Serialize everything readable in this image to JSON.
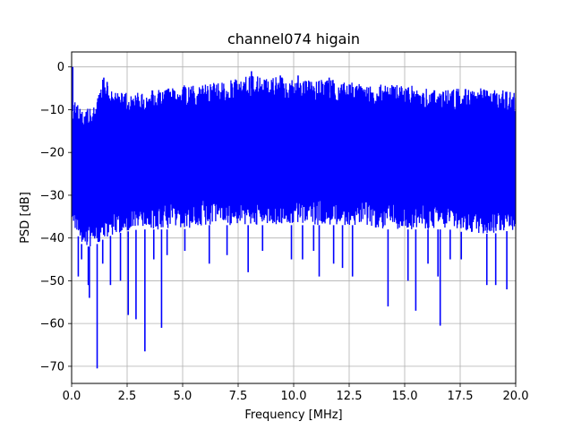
{
  "chart_data": {
    "type": "line",
    "title": "channel074 higain",
    "xlabel": "Frequency [MHz]",
    "ylabel": "PSD [dB]",
    "xlim": [
      0,
      20
    ],
    "ylim": [
      -74,
      3.5
    ],
    "xticks": [
      0,
      2.5,
      5,
      7.5,
      10,
      12.5,
      15,
      17.5,
      20
    ],
    "xtick_labels": [
      "0.0",
      "2.5",
      "5.0",
      "7.5",
      "10.0",
      "12.5",
      "15.0",
      "17.5",
      "20.0"
    ],
    "yticks": [
      0,
      -10,
      -20,
      -30,
      -40,
      -50,
      -60,
      -70
    ],
    "ytick_labels": [
      "0",
      "−10",
      "−20",
      "−30",
      "−40",
      "−50",
      "−60",
      "−70"
    ],
    "grid": true,
    "series": [
      {
        "color": "#0000ff",
        "upper_envelope": {
          "x": [
            0,
            0.5,
            1.0,
            1.4,
            2.0,
            3.0,
            4.0,
            5.0,
            6.0,
            7.0,
            8.0,
            9.0,
            10.0,
            11.0,
            12.0,
            13.0,
            14.0,
            15.0,
            16.0,
            17.0,
            18.0,
            19.0,
            20.0
          ],
          "y": [
            -7,
            -10,
            -9,
            -3,
            -6,
            -6,
            -5,
            -4,
            -4,
            -3,
            -2,
            -2,
            -3,
            -3,
            -3,
            -4,
            -4,
            -4,
            -5,
            -5,
            -5,
            -5,
            -6
          ]
        },
        "lower_envelope": {
          "x": [
            0,
            0.5,
            1.0,
            1.5,
            2.0,
            3.0,
            4.0,
            5.0,
            6.0,
            7.0,
            8.0,
            9.0,
            10.0,
            11.0,
            12.0,
            13.0,
            14.0,
            15.0,
            16.0,
            17.0,
            18.0,
            19.0,
            20.0
          ],
          "y": [
            -36,
            -42,
            -42,
            -40,
            -39,
            -38,
            -38,
            -38,
            -37,
            -37,
            -37,
            -37,
            -37,
            -37,
            -37,
            -37,
            -38,
            -38,
            -38,
            -38,
            -39,
            -39,
            -38
          ]
        },
        "dips": [
          {
            "x": 0.3,
            "y": -49
          },
          {
            "x": 0.45,
            "y": -45
          },
          {
            "x": 0.75,
            "y": -51
          },
          {
            "x": 0.8,
            "y": -54
          },
          {
            "x": 1.15,
            "y": -70.5
          },
          {
            "x": 1.4,
            "y": -46
          },
          {
            "x": 1.75,
            "y": -51
          },
          {
            "x": 2.2,
            "y": -50
          },
          {
            "x": 2.55,
            "y": -58
          },
          {
            "x": 2.9,
            "y": -59
          },
          {
            "x": 3.3,
            "y": -66.5
          },
          {
            "x": 3.7,
            "y": -45
          },
          {
            "x": 4.05,
            "y": -61
          },
          {
            "x": 4.3,
            "y": -44
          },
          {
            "x": 5.1,
            "y": -43
          },
          {
            "x": 6.2,
            "y": -46
          },
          {
            "x": 7.0,
            "y": -44
          },
          {
            "x": 7.95,
            "y": -48
          },
          {
            "x": 8.6,
            "y": -43
          },
          {
            "x": 9.9,
            "y": -45
          },
          {
            "x": 10.4,
            "y": -45
          },
          {
            "x": 10.9,
            "y": -43
          },
          {
            "x": 11.15,
            "y": -49
          },
          {
            "x": 11.8,
            "y": -46
          },
          {
            "x": 12.2,
            "y": -47
          },
          {
            "x": 12.65,
            "y": -49
          },
          {
            "x": 14.25,
            "y": -56
          },
          {
            "x": 15.15,
            "y": -50
          },
          {
            "x": 15.5,
            "y": -57
          },
          {
            "x": 16.05,
            "y": -46
          },
          {
            "x": 16.5,
            "y": -49
          },
          {
            "x": 16.6,
            "y": -60.5
          },
          {
            "x": 17.05,
            "y": -45
          },
          {
            "x": 17.55,
            "y": -45
          },
          {
            "x": 18.7,
            "y": -51
          },
          {
            "x": 19.1,
            "y": -51
          },
          {
            "x": 19.6,
            "y": -52
          }
        ],
        "peaks": [
          {
            "x": 0.05,
            "y": 0
          },
          {
            "x": 1.45,
            "y": -2.5
          },
          {
            "x": 1.6,
            "y": -3.5
          },
          {
            "x": 8.1,
            "y": -1
          },
          {
            "x": 9.4,
            "y": -2
          },
          {
            "x": 10.2,
            "y": -2
          },
          {
            "x": 11.6,
            "y": -2.5
          }
        ]
      }
    ]
  }
}
